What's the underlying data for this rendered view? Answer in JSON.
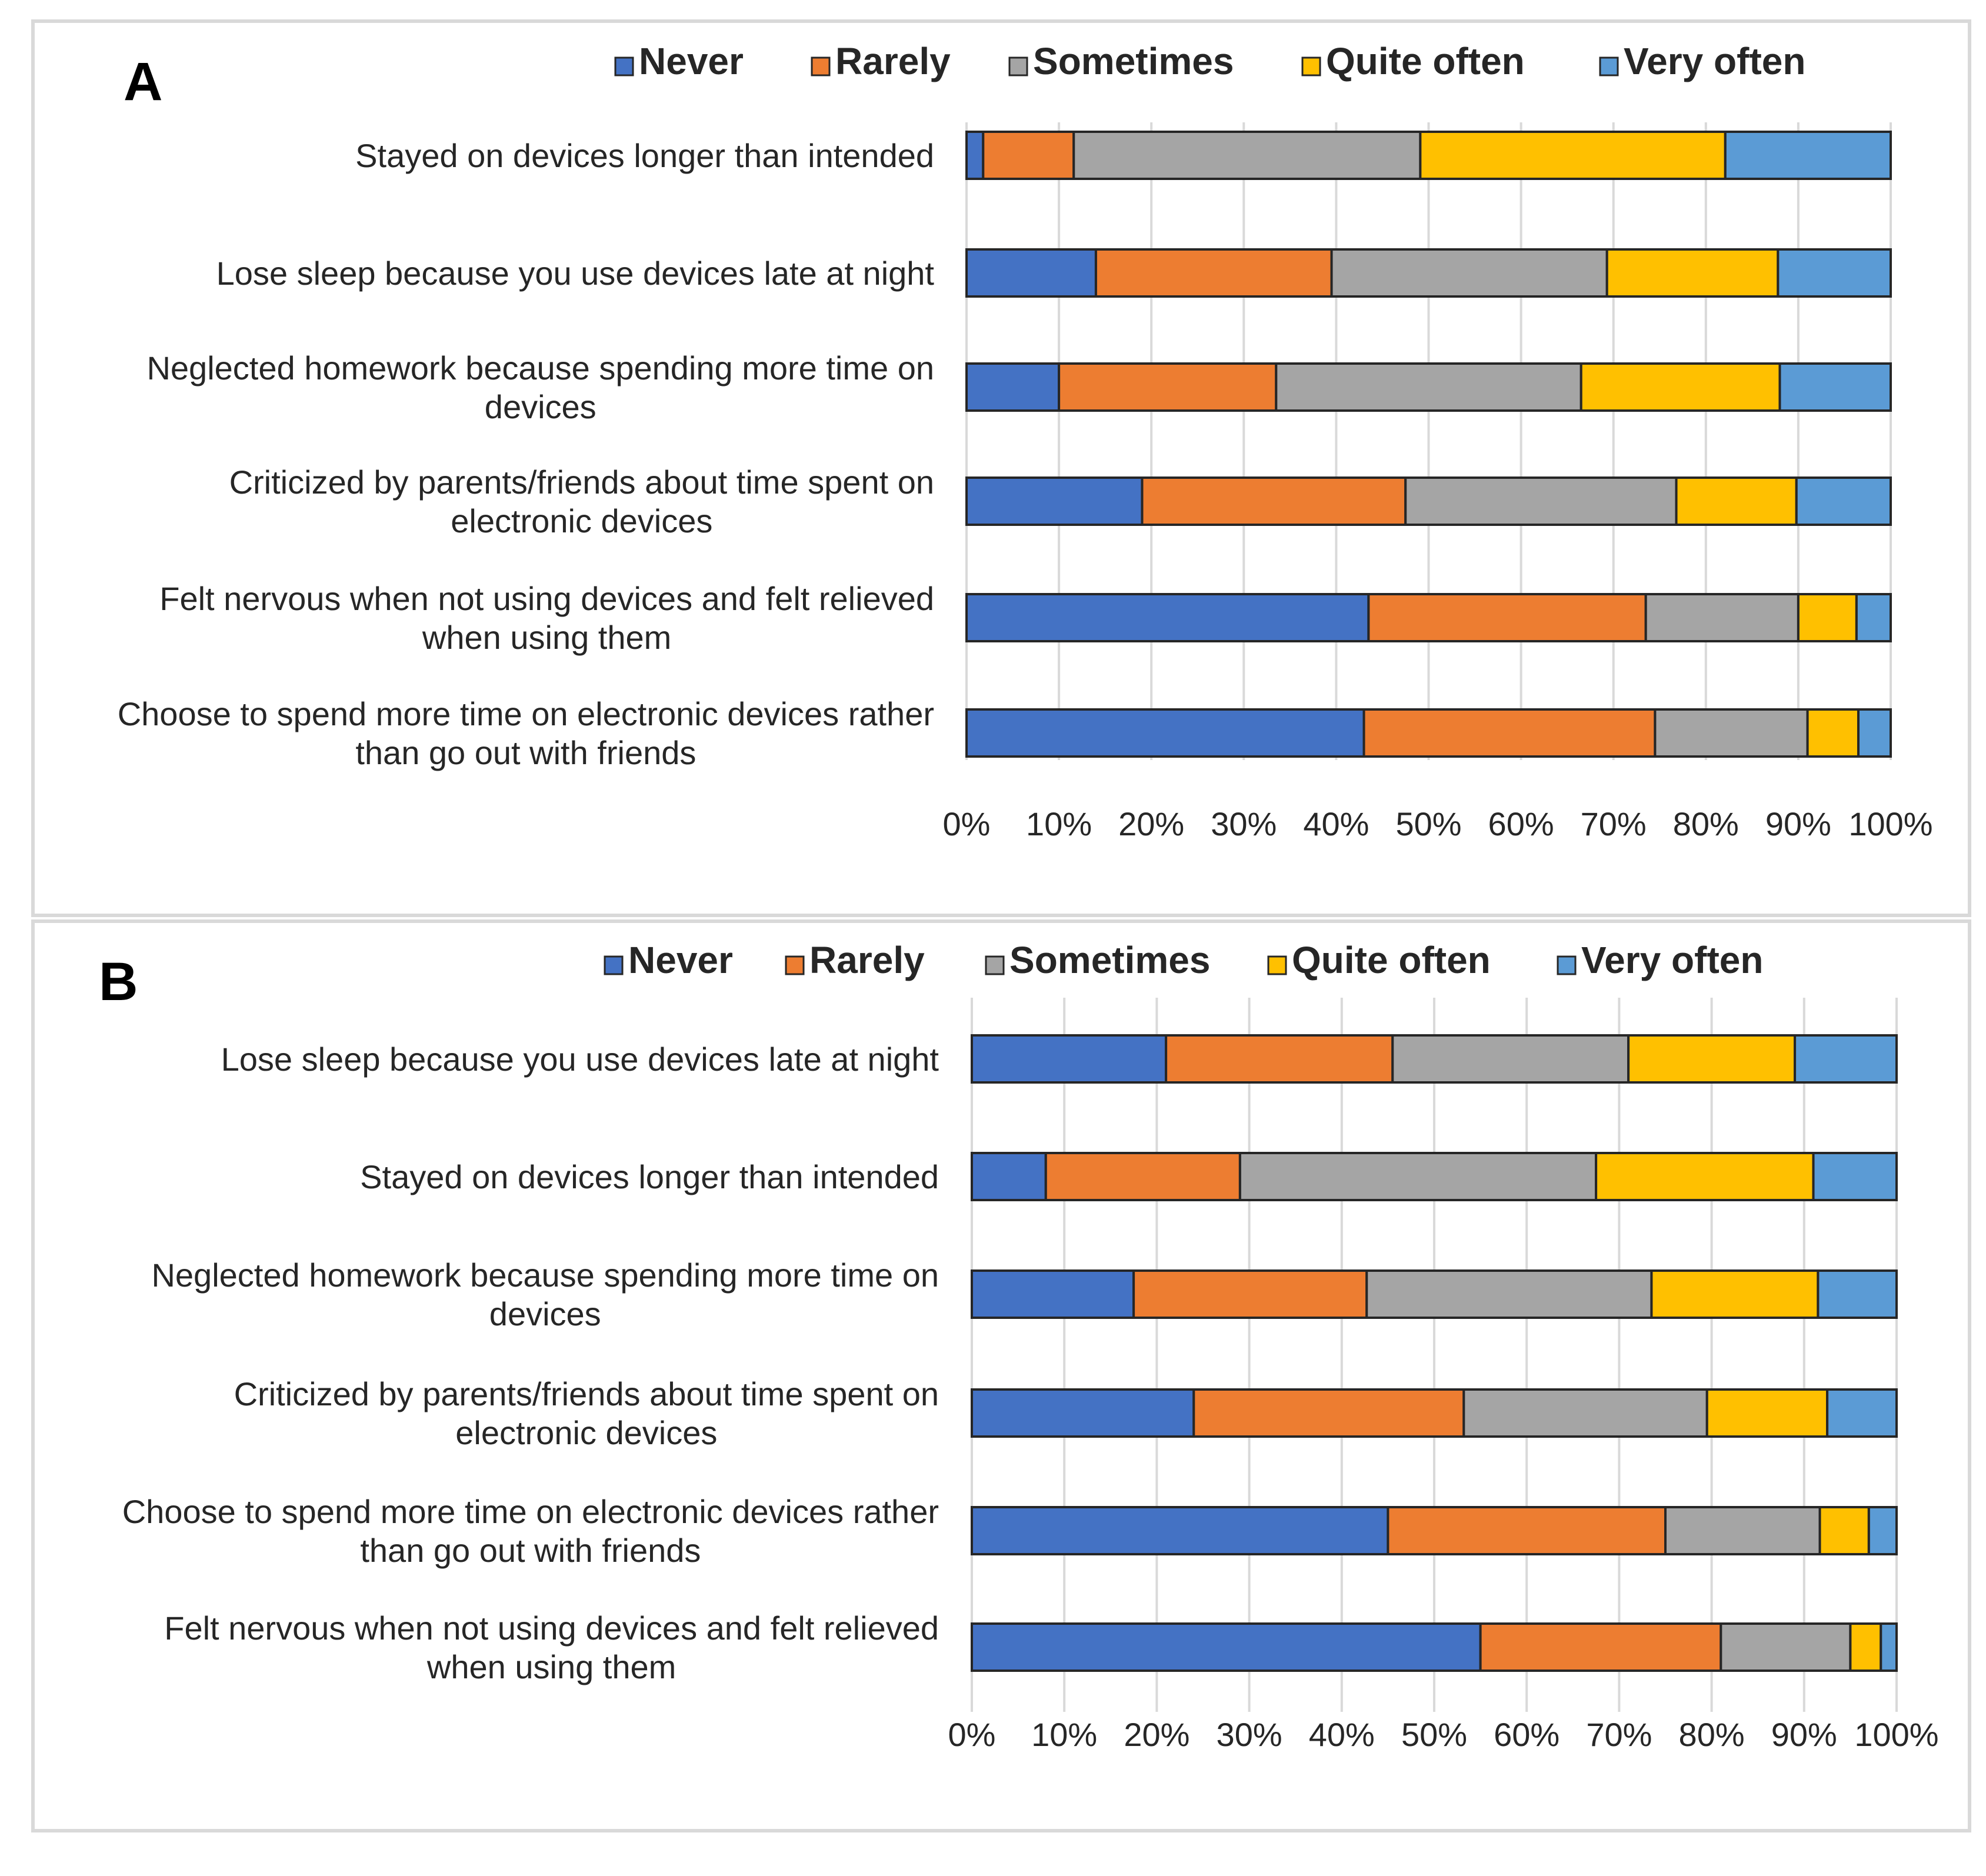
{
  "chart_data": [
    {
      "panel": "A",
      "type": "bar",
      "orientation": "horizontal",
      "stacked": "100%",
      "legend": [
        "Never",
        "Rarely",
        "Sometimes",
        "Quite often",
        "Very often"
      ],
      "colors": [
        "#4472c4",
        "#ed7d31",
        "#a5a5a5",
        "#ffc000",
        "#5b9bd5"
      ],
      "categories": [
        [
          "Stayed on devices longer than intended"
        ],
        [
          "Lose sleep because you use devices late at night"
        ],
        [
          "Neglected homework because spending more time on",
          "devices"
        ],
        [
          "Criticized by parents/friends about time spent on",
          "electronic devices"
        ],
        [
          "Felt nervous when not using devices and felt relieved",
          "when using them"
        ],
        [
          "Choose to spend more time on electronic devices rather",
          "than go out with friends"
        ]
      ],
      "series": [
        {
          "name": "Never",
          "values": [
            1.8,
            14,
            10,
            19,
            43.5,
            43
          ]
        },
        {
          "name": "Rarely",
          "values": [
            9.8,
            25.5,
            23.5,
            28.5,
            30,
            31.5
          ]
        },
        {
          "name": "Sometimes",
          "values": [
            37.5,
            29.8,
            33,
            29.3,
            16.5,
            16.5
          ]
        },
        {
          "name": "Quite often",
          "values": [
            33,
            18.5,
            21.5,
            13,
            6.3,
            5.5
          ]
        },
        {
          "name": "Very often",
          "values": [
            17.9,
            12.2,
            12,
            10.2,
            3.7,
            3.5
          ]
        }
      ],
      "xticks": [
        "0%",
        "10%",
        "20%",
        "30%",
        "40%",
        "50%",
        "60%",
        "70%",
        "80%",
        "90%",
        "100%"
      ],
      "xlim": [
        0,
        100
      ],
      "grid": true,
      "legend_position": "top"
    },
    {
      "panel": "B",
      "type": "bar",
      "orientation": "horizontal",
      "stacked": "100%",
      "legend": [
        "Never",
        "Rarely",
        "Sometimes",
        "Quite often",
        "Very often"
      ],
      "colors": [
        "#4472c4",
        "#ed7d31",
        "#a5a5a5",
        "#ffc000",
        "#5b9bd5"
      ],
      "categories": [
        [
          "Lose sleep because you use devices late at night"
        ],
        [
          "Stayed on devices longer than intended"
        ],
        [
          "Neglected homework because spending more time on",
          "devices"
        ],
        [
          "Criticized by parents/friends about time spent on",
          "electronic devices"
        ],
        [
          "Choose to spend more time on electronic devices rather",
          "than go out with friends"
        ],
        [
          "Felt nervous when not using devices and felt relieved",
          "when using them"
        ]
      ],
      "series": [
        {
          "name": "Never",
          "values": [
            21,
            8,
            17.5,
            24,
            45,
            55
          ]
        },
        {
          "name": "Rarely",
          "values": [
            24.5,
            21,
            25.2,
            29.2,
            30,
            26
          ]
        },
        {
          "name": "Sometimes",
          "values": [
            25.5,
            38.5,
            30.8,
            26.3,
            16.7,
            14
          ]
        },
        {
          "name": "Quite often",
          "values": [
            18,
            23.5,
            18,
            13,
            5.3,
            3.3
          ]
        },
        {
          "name": "Very often",
          "values": [
            11,
            9,
            8.5,
            7.5,
            3,
            1.7
          ]
        }
      ],
      "xticks": [
        "0%",
        "10%",
        "20%",
        "30%",
        "40%",
        "50%",
        "60%",
        "70%",
        "80%",
        "90%",
        "100%"
      ],
      "xlim": [
        0,
        100
      ],
      "grid": true,
      "legend_position": "top"
    }
  ]
}
